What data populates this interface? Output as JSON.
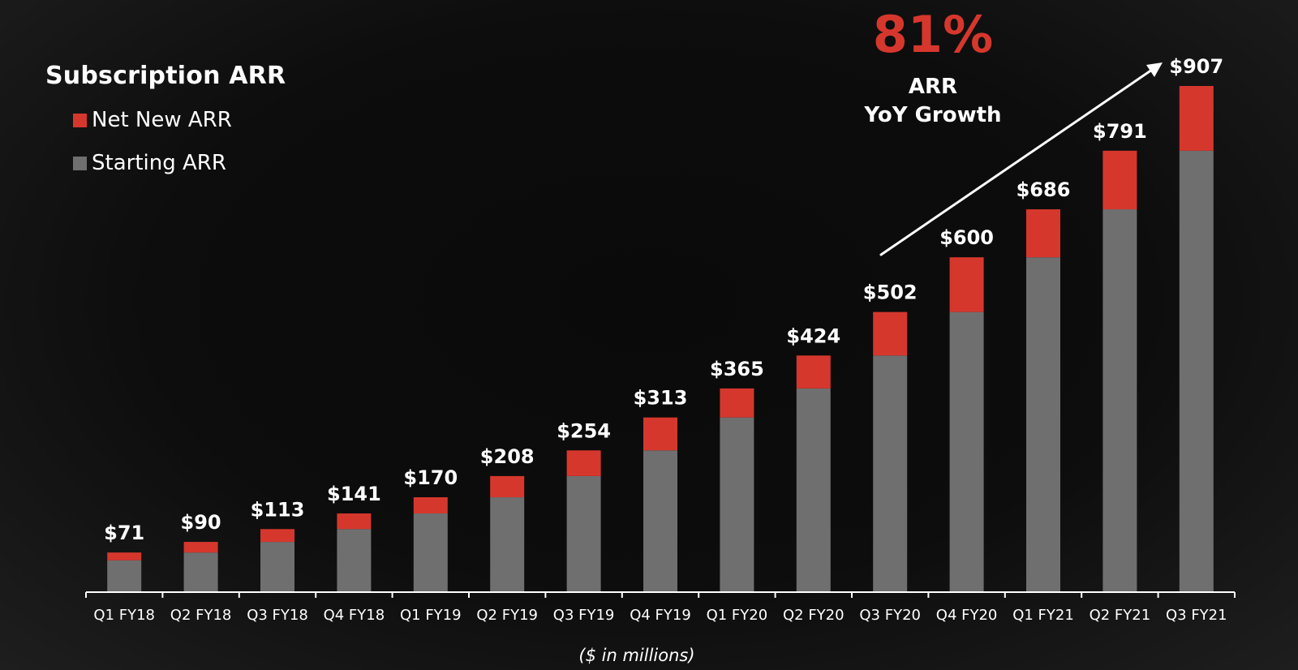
{
  "colors": {
    "net_new": "#d6372d",
    "starting": "#6f6f6f",
    "accent": "#d6372d",
    "text": "#ffffff",
    "axis": "#ffffff"
  },
  "legend": {
    "title": "Subscription ARR",
    "items": [
      {
        "label": "Net New ARR",
        "color": "#d6372d"
      },
      {
        "label": "Starting ARR",
        "color": "#6f6f6f"
      }
    ]
  },
  "annotation": {
    "growth_pct": "81%",
    "line1": "ARR",
    "line2": "YoY Growth",
    "arrow_icon": "arrow-up-right-icon"
  },
  "unit_note": "($ in millions)",
  "chart_data": {
    "type": "bar",
    "stacked": true,
    "categories": [
      "Q1 FY18",
      "Q2 FY18",
      "Q3 FY18",
      "Q4 FY18",
      "Q1 FY19",
      "Q2 FY19",
      "Q3 FY19",
      "Q4 FY19",
      "Q1 FY20",
      "Q2 FY20",
      "Q3 FY20",
      "Q4 FY20",
      "Q1 FY21",
      "Q2 FY21",
      "Q3 FY21"
    ],
    "series": [
      {
        "name": "Starting ARR",
        "values": [
          57,
          71,
          90,
          113,
          141,
          170,
          208,
          254,
          313,
          365,
          424,
          502,
          600,
          686,
          791
        ]
      },
      {
        "name": "Net New ARR",
        "values": [
          14,
          19,
          23,
          28,
          29,
          38,
          46,
          59,
          52,
          59,
          78,
          98,
          86,
          105,
          116
        ]
      }
    ],
    "totals": [
      71,
      90,
      113,
      141,
      170,
      208,
      254,
      313,
      365,
      424,
      502,
      600,
      686,
      791,
      907
    ],
    "total_labels": [
      "$71",
      "$90",
      "$113",
      "$141",
      "$170",
      "$208",
      "$254",
      "$313",
      "$365",
      "$424",
      "$502",
      "$600",
      "$686",
      "$791",
      "$907"
    ],
    "title": "Subscription ARR",
    "xlabel": "($ in millions)",
    "ylabel": "",
    "ylim": [
      0,
      907
    ],
    "grid": false,
    "legend_position": "top-left"
  }
}
